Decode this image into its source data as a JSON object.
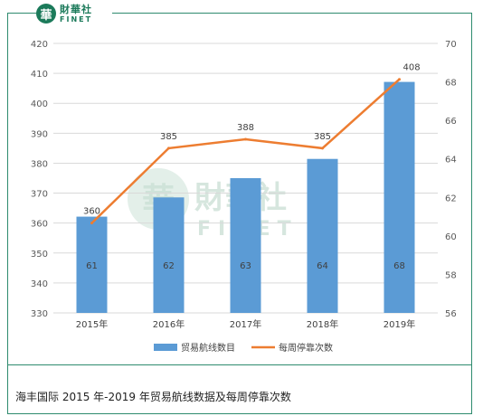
{
  "logo": {
    "cn": "財華社",
    "en": "FINET",
    "mark": "華"
  },
  "watermark": {
    "cn": "財華社",
    "en": "FINET"
  },
  "caption": "海丰国际 2015 年-2019 年贸易航线数据及每周停靠次数",
  "chart_data": {
    "type": "bar+line",
    "categories": [
      "2015年",
      "2016年",
      "2017年",
      "2018年",
      "2019年"
    ],
    "series": [
      {
        "name": "贸易航线数目",
        "type": "bar",
        "axis": "right",
        "values": [
          61,
          62,
          63,
          64,
          68
        ],
        "color": "#5b9bd5"
      },
      {
        "name": "每周停靠次数",
        "type": "line",
        "axis": "left",
        "values": [
          360,
          385,
          388,
          385,
          408
        ],
        "color": "#ed7d31"
      }
    ],
    "left_axis": {
      "min": 330,
      "max": 420,
      "step": 10
    },
    "right_axis": {
      "min": 56,
      "max": 70,
      "step": 2
    },
    "grid": true,
    "legend_position": "bottom"
  }
}
